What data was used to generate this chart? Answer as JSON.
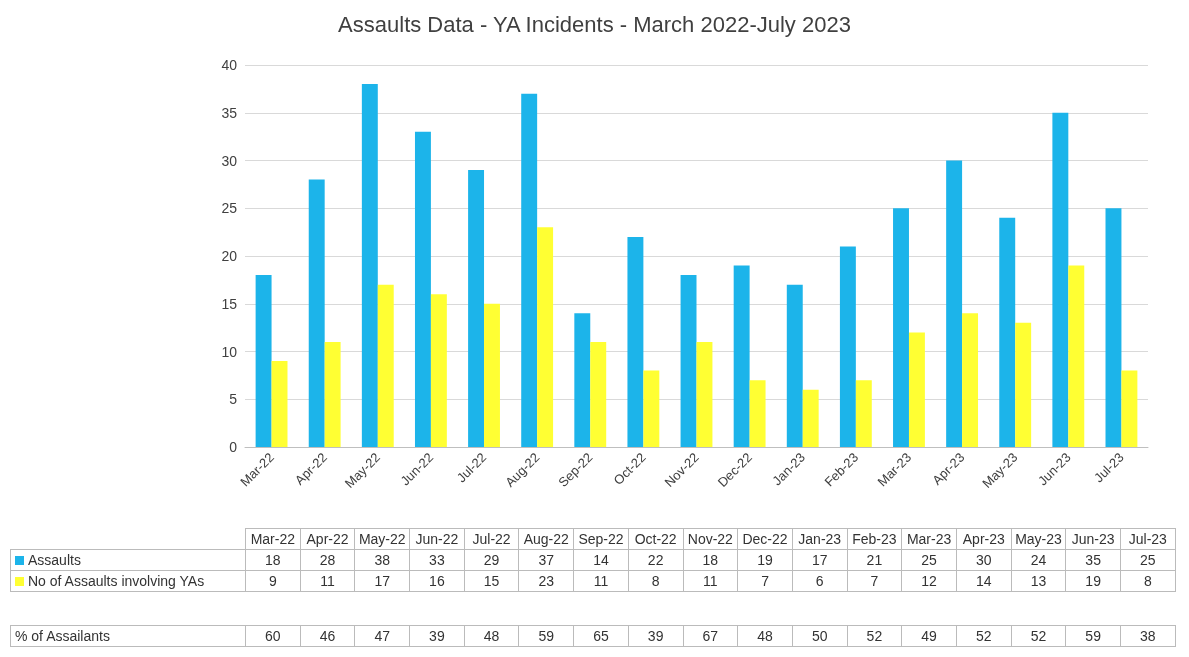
{
  "chart_data": [
    {
      "type": "bar",
      "title": "Assaults Data - YA Incidents - March 2022-July 2023",
      "categories": [
        "Mar-22",
        "Apr-22",
        "May-22",
        "Jun-22",
        "Jul-22",
        "Aug-22",
        "Sep-22",
        "Oct-22",
        "Nov-22",
        "Dec-22",
        "Jan-23",
        "Feb-23",
        "Mar-23",
        "Apr-23",
        "May-23",
        "Jun-23",
        "Jul-23"
      ],
      "series": [
        {
          "name": "Assaults",
          "color": "#1cb4ea",
          "values": [
            18,
            28,
            38,
            33,
            29,
            37,
            14,
            22,
            18,
            19,
            17,
            21,
            25,
            30,
            24,
            35,
            25
          ]
        },
        {
          "name": "No of Assaults involving YAs",
          "color": "#ffff33",
          "values": [
            9,
            11,
            17,
            16,
            15,
            23,
            11,
            8,
            11,
            7,
            6,
            7,
            12,
            14,
            13,
            19,
            8
          ]
        }
      ],
      "ylim": [
        0,
        40
      ],
      "yticks": [
        0,
        5,
        10,
        15,
        20,
        25,
        30,
        35,
        40
      ],
      "grid": "y",
      "legend": "bottom",
      "data_labels": true
    },
    {
      "type": "other",
      "series": [
        {
          "name": "% of Assailants",
          "values": [
            60,
            46,
            47,
            39,
            48,
            59,
            65,
            39,
            67,
            48,
            50,
            52,
            49,
            52,
            52,
            59,
            38
          ]
        }
      ],
      "data_labels": true
    }
  ]
}
